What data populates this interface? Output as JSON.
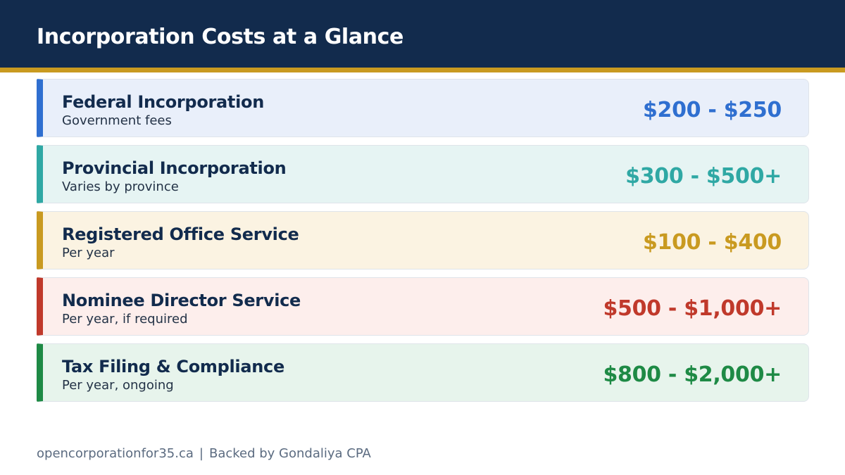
{
  "header": {
    "title": "Incorporation Costs at a Glance",
    "background_color": "#122b4d",
    "accent_color": "#c99a20"
  },
  "rows": [
    {
      "name": "Federal Incorporation",
      "subtitle": "Government fees",
      "price": "$200 - $250",
      "accent_color": "#2f6fd0",
      "background_color": "#e9effa"
    },
    {
      "name": "Provincial Incorporation",
      "subtitle": "Varies by province",
      "price": "$300 - $500+",
      "accent_color": "#2fa8a4",
      "background_color": "#e6f4f3"
    },
    {
      "name": "Registered Office Service",
      "subtitle": "Per year",
      "price": "$100 - $400",
      "accent_color": "#c99a20",
      "background_color": "#fbf3e2"
    },
    {
      "name": "Nominee Director Service",
      "subtitle": "Per year, if required",
      "price": "$500 - $1,000+",
      "accent_color": "#c0392b",
      "background_color": "#fdeeec"
    },
    {
      "name": "Tax Filing & Compliance",
      "subtitle": "Per year, ongoing",
      "price": "$800 - $2,000+",
      "accent_color": "#1e8a45",
      "background_color": "#e7f4ec"
    }
  ],
  "footer": {
    "site": "opencorporationfor35.ca",
    "separator": "|",
    "backer": "Backed by Gondaliya CPA"
  }
}
